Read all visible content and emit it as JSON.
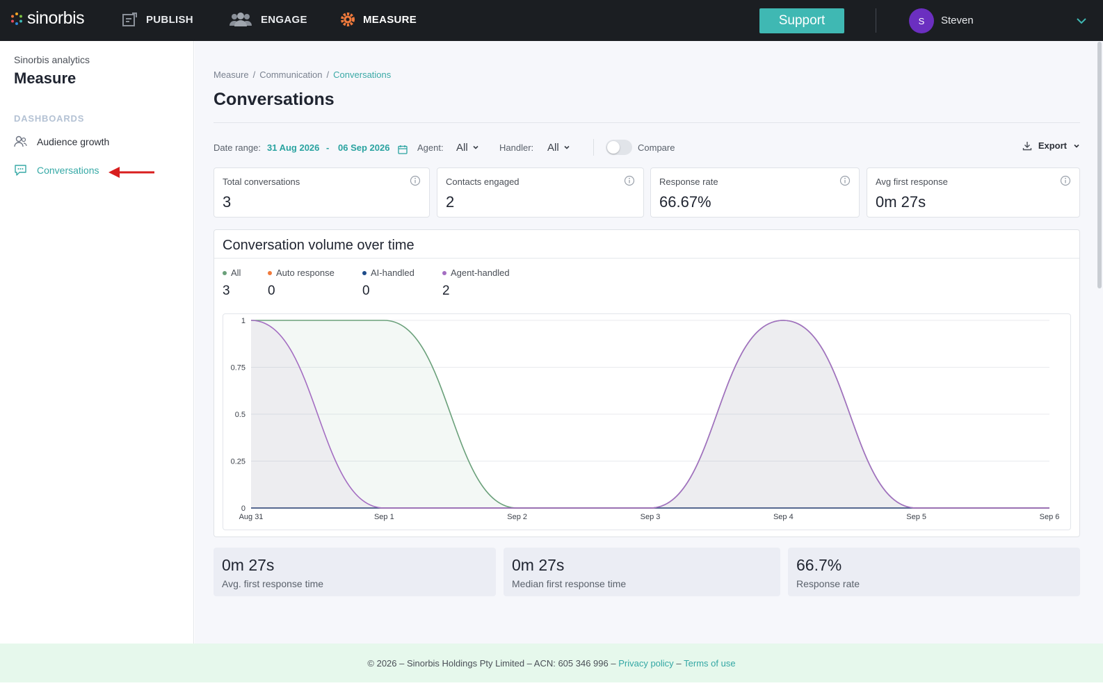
{
  "app": {
    "brand": "sinorbis",
    "nav": [
      {
        "label": "PUBLISH",
        "icon": "publish-icon"
      },
      {
        "label": "ENGAGE",
        "icon": "people-icon"
      },
      {
        "label": "MEASURE",
        "icon": "gear-icon"
      }
    ],
    "support_label": "Support",
    "user": {
      "initial": "S",
      "name": "Steven"
    },
    "accent": "#3fb8b3"
  },
  "sidebar": {
    "app_name": "Sinorbis analytics",
    "title": "Measure",
    "section": "DASHBOARDS",
    "items": [
      {
        "label": "Audience growth",
        "icon": "audience-icon",
        "active": false
      },
      {
        "label": "Conversations",
        "icon": "chat-icon",
        "active": true
      }
    ]
  },
  "breadcrumb": [
    "Measure",
    "Communication",
    "Conversations"
  ],
  "page_title": "Conversations",
  "filters": {
    "date_label": "Date range:",
    "date_start": "31 Aug 2026",
    "date_sep": "-",
    "date_end": "06 Sep 2026",
    "agent_label": "Agent:",
    "agent_value": "All",
    "handler_label": "Handler:",
    "handler_value": "All",
    "compare_label": "Compare",
    "compare_on": false,
    "export_label": "Export"
  },
  "kpis": [
    {
      "label": "Total conversations",
      "value": "3"
    },
    {
      "label": "Contacts engaged",
      "value": "2"
    },
    {
      "label": "Response rate",
      "value": "66.67%"
    },
    {
      "label": "Avg first response",
      "value": "0m 27s"
    }
  ],
  "chart_title": "Conversation volume over time",
  "legend": [
    {
      "label": "All",
      "value": "3",
      "color": "#6aa07a"
    },
    {
      "label": "Auto response",
      "value": "0",
      "color": "#f07a3c"
    },
    {
      "label": "AI-handled",
      "value": "0",
      "color": "#1e4c8a"
    },
    {
      "label": "Agent-handled",
      "value": "2",
      "color": "#a46ec2"
    }
  ],
  "chart_data": {
    "type": "area",
    "categories": [
      "Aug 31",
      "Sep 1",
      "Sep 2",
      "Sep 3",
      "Sep 4",
      "Sep 5",
      "Sep 6"
    ],
    "series": [
      {
        "name": "All",
        "color": "#6aa07a",
        "values": [
          1,
          1,
          0,
          0,
          1,
          0,
          0
        ]
      },
      {
        "name": "Auto response",
        "color": "#f07a3c",
        "values": [
          0,
          0,
          0,
          0,
          0,
          0,
          0
        ]
      },
      {
        "name": "AI-handled",
        "color": "#1e4c8a",
        "values": [
          0,
          0,
          0,
          0,
          0,
          0,
          0
        ]
      },
      {
        "name": "Agent-handled",
        "color": "#a46ec2",
        "values": [
          1,
          0,
          0,
          0,
          1,
          0,
          0
        ]
      }
    ],
    "y_ticks": [
      "1",
      "0.75",
      "0.5",
      "0.25",
      "0"
    ],
    "ylim": [
      0,
      1
    ],
    "grid": true
  },
  "stats": [
    {
      "value": "0m 27s",
      "label": "Avg. first response time"
    },
    {
      "value": "0m 27s",
      "label": "Median first response time"
    },
    {
      "value": "66.7%",
      "label": "Response rate"
    }
  ],
  "footer": {
    "copyright": "© 2026 – Sinorbis Holdings Pty Limited – ACN: 605 346 996 –",
    "privacy": "Privacy policy",
    "dash": "–",
    "terms": "Terms of use"
  }
}
